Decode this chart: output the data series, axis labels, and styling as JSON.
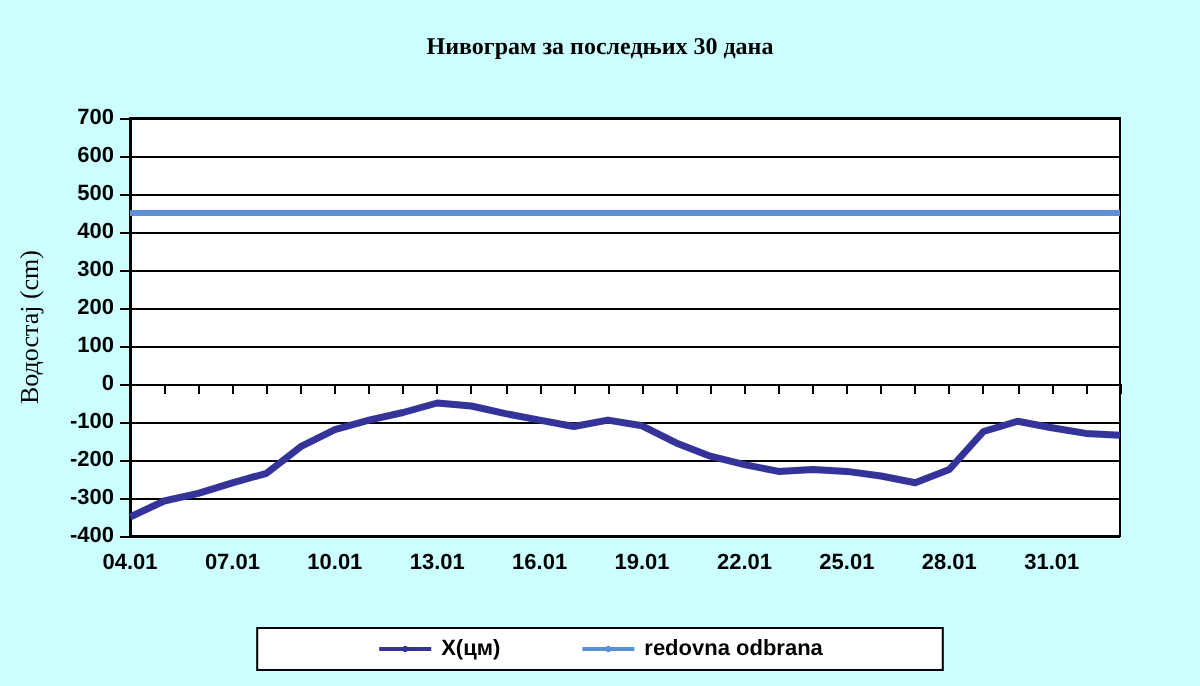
{
  "chart_data": {
    "type": "line",
    "title": "Нивограм за последњих 30 дана",
    "ylabel": "Водостај (cm)",
    "categories": [
      "04.01",
      null,
      null,
      "07.01",
      null,
      null,
      "10.01",
      null,
      null,
      "13.01",
      null,
      null,
      "16.01",
      null,
      null,
      "19.01",
      null,
      null,
      "22.01",
      null,
      null,
      "25.01",
      null,
      null,
      "28.01",
      null,
      null,
      "31.01",
      null,
      null
    ],
    "series": [
      {
        "name": "X(цм)",
        "color": "#333399",
        "values": [
          -350,
          -308,
          -288,
          -260,
          -235,
          -165,
          -120,
          -95,
          -75,
          -50,
          -58,
          -78,
          -95,
          -112,
          -95,
          -110,
          -155,
          -190,
          -212,
          -230,
          -225,
          -230,
          -242,
          -260,
          -225,
          -125,
          -98,
          -115,
          -130,
          -135
        ]
      }
    ],
    "ylim": [
      -400,
      700
    ],
    "yticks": [
      -400,
      -300,
      -200,
      -100,
      0,
      100,
      200,
      300,
      400,
      500,
      600,
      700
    ],
    "ref_lines": [
      {
        "axis": "y",
        "value": 450,
        "label": "redovna odbrana",
        "color": "#5b8fd6"
      }
    ],
    "grid": "y",
    "legend": "bottom",
    "marker": "none"
  }
}
